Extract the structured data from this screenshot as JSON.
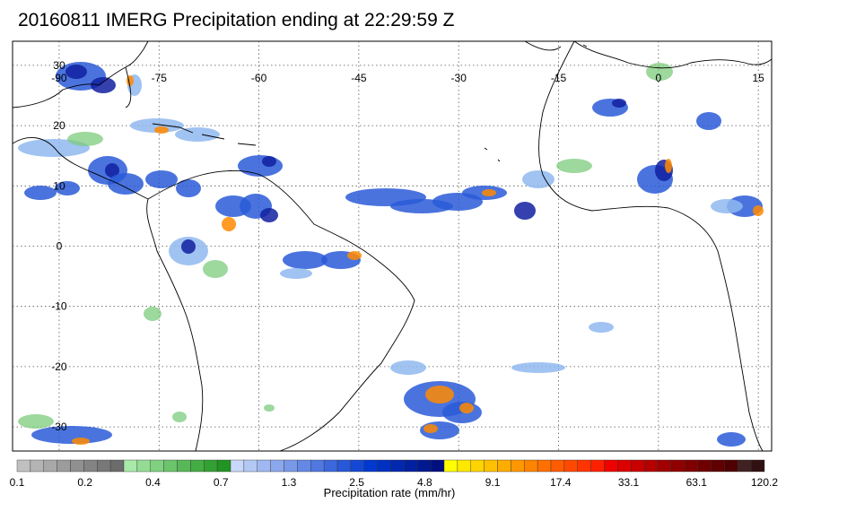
{
  "title": "20160811 IMERG Precipitation ending at 22:29:59 Z",
  "map": {
    "lon_labels": [
      "-90",
      "-75",
      "-60",
      "-45",
      "-30",
      "-15",
      "0",
      "15"
    ],
    "lat_labels": [
      "30",
      "20",
      "10",
      "0",
      "-10",
      "-20",
      "-30"
    ],
    "extent": {
      "lon_min": -97,
      "lon_max": 17,
      "lat_min": -34,
      "lat_max": 34
    },
    "gridlines": "dotted",
    "features": [
      "coastlines",
      "precipitation"
    ]
  },
  "colorbar": {
    "caption": "Precipitation rate (mm/hr)",
    "tick_labels": [
      "0.1",
      "0.2",
      "0.4",
      "0.7",
      "1.3",
      "2.5",
      "4.8",
      "9.1",
      "17.4",
      "33.1",
      "63.1",
      "120.2"
    ],
    "colors": [
      "#c0c0c0",
      "#b4b4b4",
      "#a8a8a8",
      "#9c9c9c",
      "#909090",
      "#848484",
      "#787878",
      "#6c6c6c",
      "#a8e8a8",
      "#94dc94",
      "#80d080",
      "#6cc46c",
      "#58b858",
      "#44ac44",
      "#33a033",
      "#229422",
      "#c8d8f8",
      "#b4c8f4",
      "#a0b8f0",
      "#8ca8ec",
      "#7898e8",
      "#6488e4",
      "#5078e0",
      "#3c68dc",
      "#2858d8",
      "#1448d4",
      "#0038d0",
      "#0030c0",
      "#0028b0",
      "#0020a0",
      "#001890",
      "#001080",
      "#ffff00",
      "#ffe800",
      "#ffd400",
      "#ffc000",
      "#ffac00",
      "#ff9800",
      "#ff8400",
      "#ff7000",
      "#ff5c00",
      "#ff4800",
      "#ff3400",
      "#ff2000",
      "#f00000",
      "#dc0000",
      "#c80000",
      "#b40000",
      "#a00000",
      "#900000",
      "#800000",
      "#700000",
      "#600000",
      "#500000",
      "#402020",
      "#301010"
    ]
  }
}
